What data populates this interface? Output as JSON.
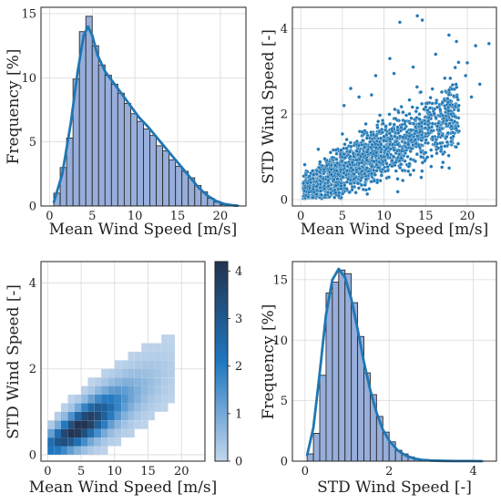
{
  "chart_data": [
    {
      "type": "bar",
      "subtype": "histogram-with-kde",
      "xlabel": "Mean Wind Speed [m/s]",
      "ylabel": "Frequency [%]",
      "xlim": [
        -1,
        23
      ],
      "ylim": [
        0,
        15.5
      ],
      "xticks": [
        "0",
        "5",
        "10",
        "15",
        "20"
      ],
      "yticks": [
        "0",
        "5",
        "10",
        "15"
      ],
      "bin_edges": [
        0.5,
        1.25,
        2.0,
        2.75,
        3.5,
        4.25,
        5.0,
        5.75,
        6.5,
        7.25,
        8.0,
        8.75,
        9.5,
        10.25,
        11.0,
        11.75,
        12.5,
        13.25,
        14.0,
        14.75,
        15.5,
        16.25,
        17.0,
        17.75,
        18.5,
        19.25,
        20.0,
        20.75,
        21.5,
        22.25
      ],
      "values": [
        1.0,
        3.0,
        5.3,
        9.9,
        13.6,
        14.8,
        12.5,
        11.0,
        10.2,
        9.5,
        8.8,
        8.0,
        7.2,
        6.6,
        6.0,
        5.5,
        4.7,
        4.3,
        3.6,
        3.1,
        2.7,
        2.2,
        1.6,
        1.1,
        0.6,
        0.3,
        0.1,
        0.05,
        0.02
      ],
      "kde": {
        "x": [
          0.5,
          1.5,
          2.5,
          3.3,
          4.0,
          4.5,
          5.0,
          5.6,
          6.5,
          7.5,
          8.5,
          9.5,
          10.5,
          11.5,
          12.5,
          13.5,
          14.5,
          15.5,
          16.5,
          17.5,
          18.5,
          19.5,
          20.5,
          21.5,
          22.0
        ],
        "y": [
          0.3,
          2.5,
          6.5,
          10.5,
          13.3,
          14.0,
          13.3,
          11.8,
          10.5,
          9.6,
          8.7,
          7.8,
          6.9,
          6.2,
          5.4,
          4.6,
          3.8,
          3.0,
          2.2,
          1.4,
          0.8,
          0.4,
          0.15,
          0.05,
          0.02
        ]
      },
      "grid": true,
      "bar_color": "#97aedb",
      "line_color": "#1f77b4"
    },
    {
      "type": "scatter",
      "xlabel": "Mean Wind Speed [m/s]",
      "ylabel": "STD Wind Speed [-]",
      "xlim": [
        -1,
        23.5
      ],
      "ylim": [
        -0.15,
        4.5
      ],
      "xticks": [
        "0",
        "5",
        "10",
        "15",
        "20"
      ],
      "yticks": [
        "0",
        "2",
        "4"
      ],
      "trend": {
        "slope": 0.097,
        "intercept": 0.18,
        "x_range": [
          0.3,
          19
        ],
        "spread_base": 0.2,
        "spread_slope": 0.012
      },
      "outliers": [
        [
          11.9,
          4.15
        ],
        [
          14.0,
          4.3
        ],
        [
          14.6,
          4.2
        ],
        [
          17.8,
          3.85
        ],
        [
          18.7,
          3.7
        ],
        [
          21.0,
          3.6
        ],
        [
          22.6,
          3.65
        ],
        [
          20.0,
          3.2
        ],
        [
          19.8,
          2.9
        ],
        [
          9.0,
          2.9
        ],
        [
          10.7,
          3.3
        ],
        [
          16.2,
          3.4
        ],
        [
          13.5,
          3.1
        ],
        [
          7.0,
          2.4
        ],
        [
          6.0,
          2.6
        ],
        [
          5.2,
          2.2
        ],
        [
          21.5,
          2.7
        ],
        [
          20.5,
          2.4
        ],
        [
          8.5,
          2.45
        ],
        [
          11.2,
          2.95
        ]
      ],
      "grid": true,
      "point_color": "#1f77b4"
    },
    {
      "type": "heatmap",
      "xlabel": "Mean Wind Speed [m/s]",
      "ylabel": "STD Wind Speed [-]",
      "xlim": [
        -1,
        23.5
      ],
      "ylim": [
        -0.15,
        4.5
      ],
      "xticks": [
        "0",
        "5",
        "10",
        "15",
        "20"
      ],
      "yticks": [
        "0",
        "2",
        "4"
      ],
      "colorbar": {
        "min": 0,
        "max": 4.2,
        "ticks": [
          "0",
          "1",
          "2",
          "3",
          "4"
        ]
      },
      "grid": true,
      "colormap": [
        "#c3d6ec",
        "#1f77c0",
        "#23334f"
      ]
    },
    {
      "type": "bar",
      "subtype": "histogram-with-kde",
      "xlabel": "STD Wind Speed [-]",
      "ylabel": "Frequency [%]",
      "xlim": [
        -0.3,
        4.55
      ],
      "ylim": [
        0,
        16.5
      ],
      "xticks": [
        "0",
        "2",
        "4"
      ],
      "yticks": [
        "0",
        "5",
        "10",
        "15"
      ],
      "bin_edges": [
        0.05,
        0.2,
        0.35,
        0.5,
        0.65,
        0.8,
        0.95,
        1.1,
        1.25,
        1.4,
        1.55,
        1.7,
        1.85,
        2.0,
        2.15,
        2.3,
        2.45,
        2.6,
        2.75,
        2.9,
        3.05,
        3.2,
        3.35,
        3.5,
        3.65,
        3.8,
        3.95,
        4.1,
        4.25
      ],
      "values": [
        0.6,
        2.3,
        7.1,
        13.9,
        14.8,
        15.8,
        15.5,
        13.1,
        10.3,
        7.3,
        5.5,
        3.7,
        2.4,
        1.6,
        0.9,
        0.6,
        0.35,
        0.2,
        0.12,
        0.08,
        0.05,
        0.04,
        0.03,
        0.02,
        0.02,
        0.01,
        0.01,
        0.01
      ],
      "kde": {
        "x": [
          0.05,
          0.2,
          0.35,
          0.5,
          0.65,
          0.8,
          0.95,
          1.1,
          1.25,
          1.4,
          1.55,
          1.7,
          1.85,
          2.0,
          2.2,
          2.4,
          2.6,
          2.8,
          3.0,
          3.3,
          3.6,
          3.9,
          4.2
        ],
        "y": [
          0.5,
          2.8,
          7.3,
          12.1,
          15.0,
          15.9,
          15.2,
          13.4,
          10.9,
          8.2,
          5.9,
          4.0,
          2.6,
          1.7,
          0.9,
          0.45,
          0.22,
          0.1,
          0.05,
          0.02,
          0.01,
          0.005,
          0.0
        ],
        "line_start_x": 0.05
      },
      "grid": true,
      "bar_color": "#97aedb",
      "line_color": "#1f77b4"
    }
  ]
}
